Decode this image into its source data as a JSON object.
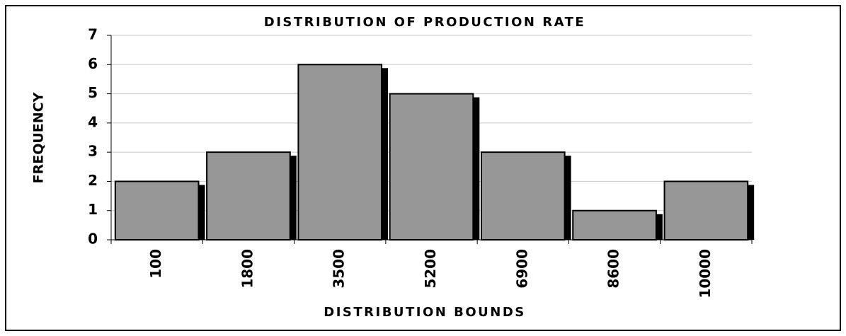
{
  "chart_data": {
    "type": "bar",
    "title": "DISTRIBUTION OF PRODUCTION RATE",
    "x_label": "DISTRIBUTION BOUNDS",
    "y_label": "FREQUENCY",
    "categories": [
      "100",
      "1800",
      "3500",
      "5200",
      "6900",
      "8600",
      "10000"
    ],
    "values": [
      2,
      3,
      6,
      5,
      3,
      1,
      2
    ],
    "color": "#969696",
    "ylim": [
      0,
      7
    ],
    "yticks": [
      0,
      1,
      2,
      3,
      4,
      5,
      6,
      7
    ],
    "grid": true
  }
}
